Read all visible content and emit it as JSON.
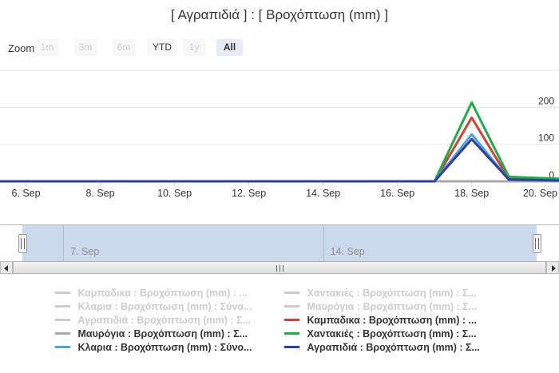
{
  "title": "[ Αγραπιδιά ] : [ Βροχόπτωση (mm) ]",
  "toolbar": {
    "label": "Zoom",
    "buttons": [
      {
        "label": "1m",
        "state": "disabled"
      },
      {
        "label": "3m",
        "state": "disabled"
      },
      {
        "label": "6m",
        "state": "disabled"
      },
      {
        "label": "YTD",
        "state": "enabled"
      },
      {
        "label": "1y",
        "state": "disabled"
      },
      {
        "label": "All",
        "state": "selected"
      }
    ]
  },
  "colors": {
    "text": "#333333",
    "grid": "#e6e6e6",
    "axis": "#ccd6eb",
    "button_bg": "#f7f7f7",
    "button_selected_bg": "#e6ebf5",
    "disabled_text": "#cccccc",
    "navigator_mask": "#ccd9ec",
    "nav_label": "#8f8f8f"
  },
  "chart_data": {
    "type": "line",
    "title": "[ Αγραπιδιά ] : [ Βροχόπτωση (mm) ]",
    "xlabel": "",
    "ylabel": "",
    "x_unit": "day of September",
    "x_range_days": [
      5.3,
      20.35
    ],
    "ylim": [
      0,
      300
    ],
    "grid": true,
    "legend_position": "bottom",
    "y_ticks": [
      0,
      100,
      200
    ],
    "x_ticks": [
      {
        "day": 6,
        "label": "6. Sep"
      },
      {
        "day": 8,
        "label": "8. Sep"
      },
      {
        "day": 10,
        "label": "10. Sep"
      },
      {
        "day": 12,
        "label": "12. Sep"
      },
      {
        "day": 14,
        "label": "14. Sep"
      },
      {
        "day": 16,
        "label": "16. Sep"
      },
      {
        "day": 18,
        "label": "18. Sep"
      },
      {
        "day": 20,
        "label": "20. Sep"
      }
    ],
    "series": [
      {
        "name": "Μαυρόγια : Βροχόπτωση (mm)",
        "color": "#a9a9ad",
        "points": [
          [
            5.3,
            0
          ],
          [
            17,
            0
          ],
          [
            18,
            0
          ],
          [
            19,
            0
          ],
          [
            20.35,
            0
          ]
        ]
      },
      {
        "name": "Καμπαδικα : Βροχόπτωση (mm)",
        "color": "#cc4437",
        "points": [
          [
            5.3,
            0
          ],
          [
            17,
            0
          ],
          [
            18,
            172
          ],
          [
            19,
            6
          ],
          [
            20,
            4
          ],
          [
            20.35,
            3
          ]
        ]
      },
      {
        "name": "Χαντακιές : Βροχόπτωση (mm)",
        "color": "#23a94c",
        "points": [
          [
            5.3,
            0
          ],
          [
            17,
            0
          ],
          [
            18,
            213
          ],
          [
            19,
            12
          ],
          [
            20,
            8
          ],
          [
            20.35,
            7
          ]
        ]
      },
      {
        "name": "Κλαρια : Βροχόπτωση (mm)",
        "color": "#4ba3da",
        "points": [
          [
            5.3,
            0
          ],
          [
            17,
            0
          ],
          [
            18,
            127
          ],
          [
            19,
            4
          ],
          [
            20,
            2
          ],
          [
            20.35,
            2
          ]
        ]
      },
      {
        "name": "Αγραπιδιά : Βροχόπτωση (mm)",
        "color": "#2f3f9e",
        "points": [
          [
            5.3,
            0
          ],
          [
            17,
            0
          ],
          [
            18,
            114
          ],
          [
            19,
            5
          ],
          [
            20,
            3
          ],
          [
            20.35,
            2
          ]
        ]
      }
    ]
  },
  "navigator": {
    "labels": [
      {
        "day": 7,
        "label": "7. Sep"
      },
      {
        "day": 14,
        "label": "14. Sep"
      }
    ]
  },
  "legend": {
    "items": [
      {
        "label": "Καμπαδικα : Βροχόπτωση (mm) : ...",
        "color": "#cccccc",
        "disabled": true
      },
      {
        "label": "Χαντακιές : Βροχόπτωση (mm) : Σ...",
        "color": "#cccccc",
        "disabled": true
      },
      {
        "label": "Κλαρια : Βροχόπτωση (mm) : Σύνο...",
        "color": "#cccccc",
        "disabled": true
      },
      {
        "label": "Μαυρόγια : Βροχόπτωση (mm) : Σ...",
        "color": "#cccccc",
        "disabled": true
      },
      {
        "label": "Αγραπιδιά : Βροχόπτωση (mm) : Σ...",
        "color": "#cccccc",
        "disabled": true
      },
      {
        "label": "Καμπαδικα : Βροχόπτωση (mm) : ...",
        "color": "#cc4437",
        "disabled": false
      },
      {
        "label": "Μαυρόγια : Βροχόπτωση (mm) : Σ...",
        "color": "#a9a9ad",
        "disabled": false
      },
      {
        "label": "Χαντακιές : Βροχόπτωση (mm) : Σ...",
        "color": "#23a94c",
        "disabled": false
      },
      {
        "label": "Κλαρια : Βροχόπτωση (mm) : Σύνο...",
        "color": "#4ba3da",
        "disabled": false
      },
      {
        "label": "Αγραπιδιά : Βροχόπτωση (mm) : Σ...",
        "color": "#2f3f9e",
        "disabled": false
      }
    ]
  }
}
